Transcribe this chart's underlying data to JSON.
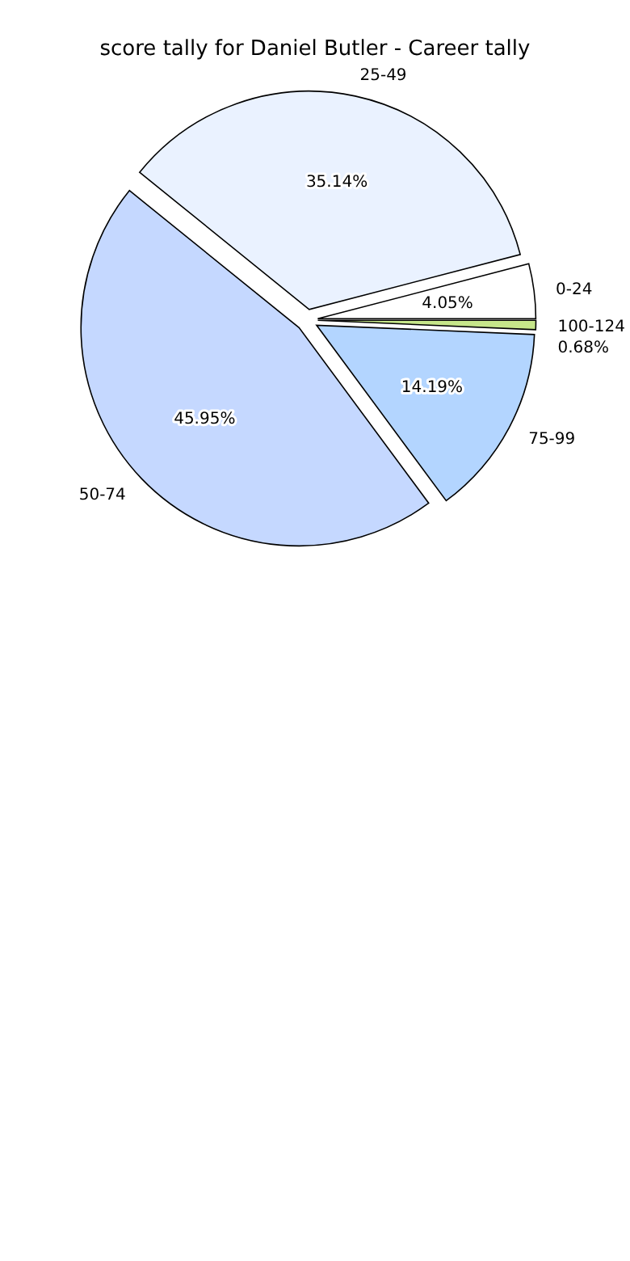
{
  "chart_data": {
    "type": "pie",
    "title": "score tally for Daniel Butler - Career tally",
    "categories": [
      "0-24",
      "25-49",
      "50-74",
      "75-99",
      "100-124"
    ],
    "values": [
      4.05,
      35.14,
      45.95,
      14.19,
      0.68
    ],
    "colors": [
      "#ffffff",
      "#eaf2ff",
      "#c5d8ff",
      "#b3d5ff",
      "#c6e68a"
    ],
    "value_labels": [
      "4.05%",
      "35.14%",
      "45.95%",
      "14.19%",
      "0.68%"
    ]
  }
}
